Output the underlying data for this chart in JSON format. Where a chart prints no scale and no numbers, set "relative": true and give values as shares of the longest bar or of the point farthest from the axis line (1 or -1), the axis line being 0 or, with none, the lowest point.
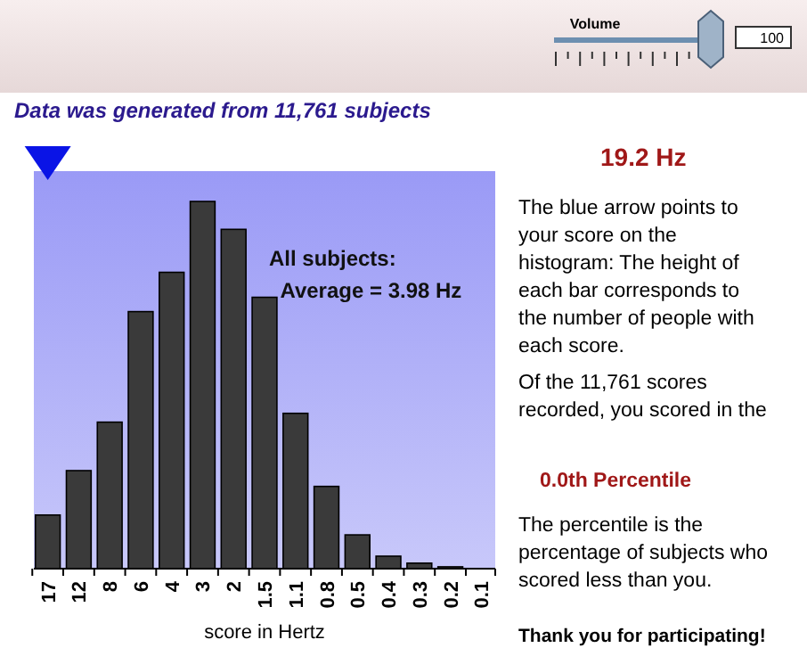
{
  "chart_data": {
    "type": "bar",
    "relative": true,
    "title": "Data was generated from 11,761 subjects",
    "xlabel": "score in Hertz",
    "categories": [
      "17",
      "12",
      "8",
      "6",
      "4",
      "3",
      "2",
      "1.5",
      "1.1",
      "0.8",
      "0.5",
      "0.4",
      "0.3",
      "0.2",
      "0.1"
    ],
    "values": [
      0.146,
      0.267,
      0.399,
      0.7,
      0.807,
      1,
      0.924,
      0.739,
      0.423,
      0.224,
      0.092,
      0.034,
      0.015,
      0.005,
      0
    ],
    "color": "#3a3a3a",
    "annotations": [
      "Volume",
      "100",
      "All subjects:\n  Average = 3.98 Hz",
      "19.2 Hz",
      "The blue arrow points to\nyour score on the\nhistogram: The height of\neach bar corresponds to\nthe number of people with\neach score.",
      "Of the 11,761 scores\nrecorded, you scored in the",
      "0.0th Percentile",
      "The percentile is the\npercentage of subjects who\nscored less than you.",
      "Thank you for participating!"
    ]
  }
}
